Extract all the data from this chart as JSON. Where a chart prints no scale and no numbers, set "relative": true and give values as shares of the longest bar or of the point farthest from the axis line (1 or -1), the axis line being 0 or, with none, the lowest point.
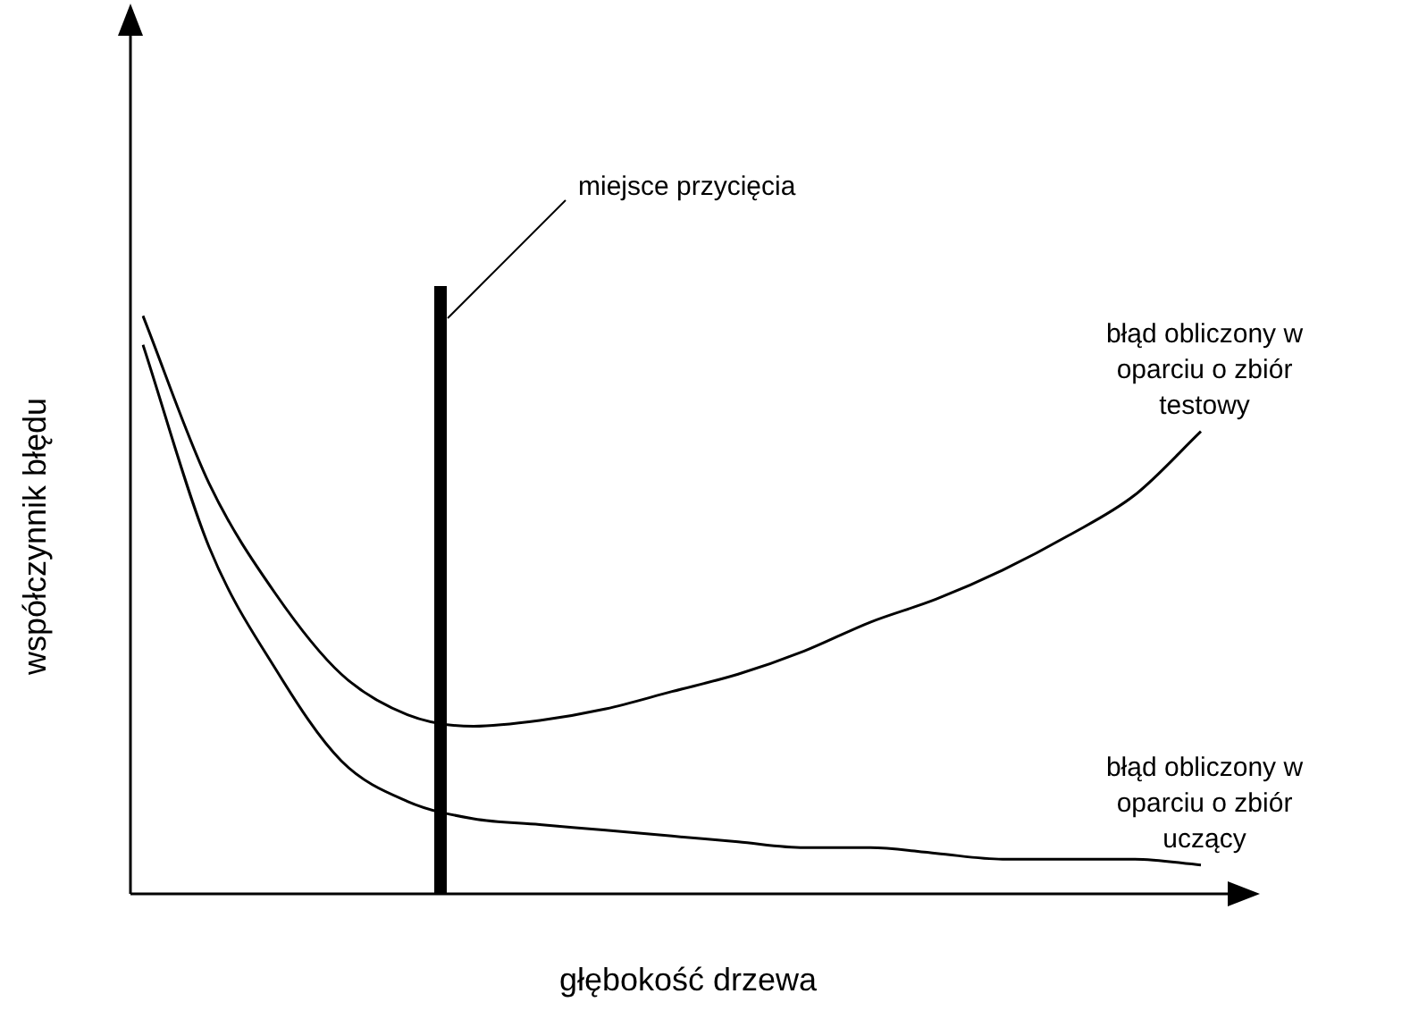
{
  "chart_data": {
    "type": "line",
    "relative": true,
    "xlabel": "głębokość drzewa",
    "ylabel": "współczynnik błędu",
    "categories": [
      null,
      null,
      null,
      null,
      null,
      null,
      null,
      null,
      null,
      null,
      null,
      null,
      null,
      null,
      null,
      null,
      null
    ],
    "series": [
      {
        "name": "błąd obliczony w oparciu o zbiór testowy",
        "color": "#000000",
        "values": [
          1,
          0.71,
          0.52,
          0.38,
          0.31,
          0.29,
          0.3,
          0.32,
          0.35,
          0.38,
          0.42,
          0.47,
          0.51,
          0.56,
          0.62,
          0.69,
          0.8
        ]
      },
      {
        "name": "błąd obliczony w oparciu o zbiór uczący",
        "color": "#000000",
        "values": [
          0.95,
          0.6,
          0.39,
          0.23,
          0.16,
          0.13,
          0.12,
          0.11,
          0.1,
          0.09,
          0.08,
          0.08,
          0.07,
          0.06,
          0.06,
          0.06,
          0.05
        ]
      }
    ],
    "annotations": [
      "miejsce przycięcia"
    ],
    "legend": false,
    "marker": "none",
    "line_style": "solid"
  }
}
